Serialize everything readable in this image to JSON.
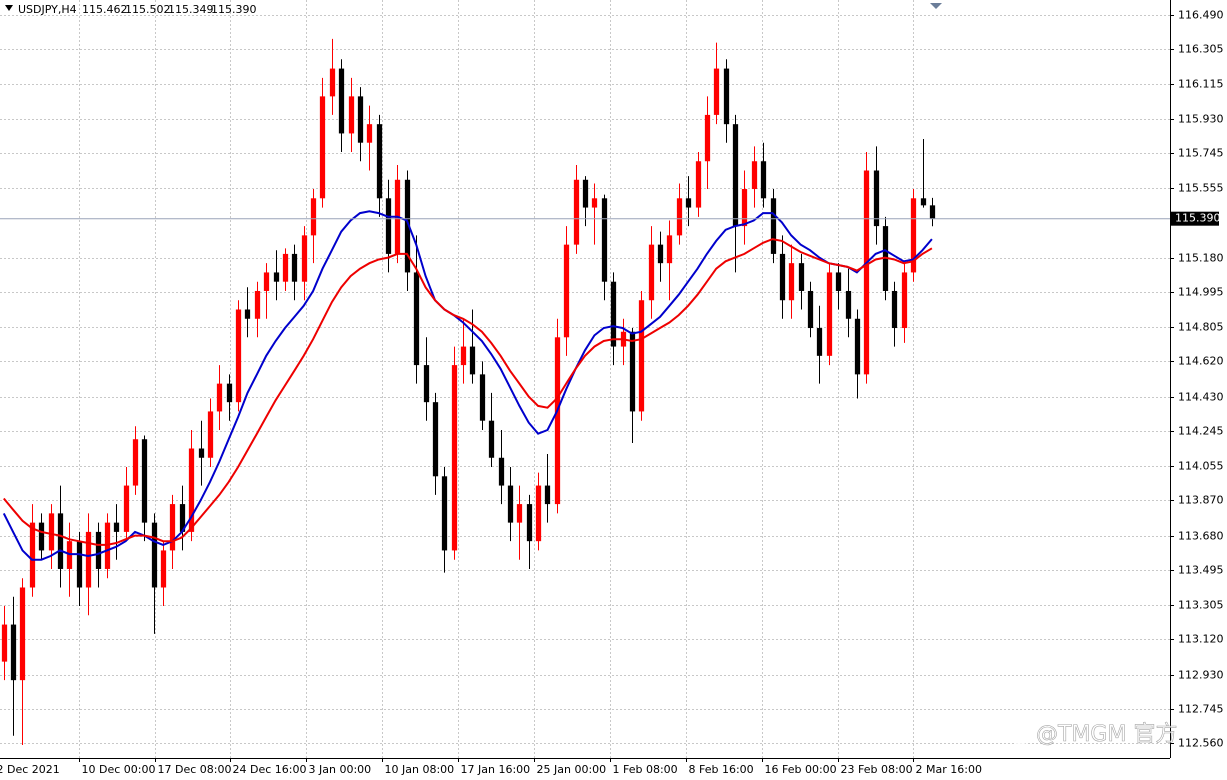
{
  "chart_data": {
    "type": "candlestick",
    "title": "USDJPY,H4",
    "last_bar_labels": [
      "115.462",
      "115.502",
      "115.349",
      "115.390"
    ],
    "current_price": {
      "value": 115.39,
      "label": "115.390"
    },
    "watermark": "@TMGM 官方",
    "bull_color": "#ff0000",
    "bear_color": "#000000",
    "grid": true,
    "open": [
      113.0,
      113.2,
      112.9,
      113.4,
      113.75,
      113.6,
      113.8,
      113.5,
      113.65,
      113.4,
      113.7,
      113.5,
      113.75,
      113.7,
      113.95,
      114.2,
      113.75,
      113.4,
      113.6,
      113.85,
      113.7,
      114.15,
      114.1,
      114.35,
      114.5,
      114.4,
      114.9,
      114.85,
      115.0,
      115.1,
      115.05,
      115.2,
      115.05,
      115.3,
      115.5,
      116.05,
      116.2,
      115.85,
      116.05,
      115.8,
      115.9,
      115.5,
      115.2,
      115.6,
      115.1,
      114.6,
      114.4,
      114.0,
      113.6,
      114.6,
      114.7,
      114.55,
      114.3,
      114.1,
      113.95,
      113.75,
      113.85,
      113.65,
      113.95,
      113.85,
      114.75,
      115.25,
      115.6,
      115.45,
      115.5,
      115.05,
      114.7,
      114.78,
      114.35,
      114.95,
      115.25,
      115.15,
      115.3,
      115.5,
      115.45,
      115.7,
      115.95,
      116.2,
      115.9,
      115.35,
      115.55,
      115.7,
      115.5,
      115.2,
      114.95,
      115.15,
      115.0,
      114.8,
      114.65,
      115.1,
      115.0,
      114.85,
      114.55,
      115.65,
      115.35,
      115.0,
      114.8,
      115.1,
      115.5,
      115.462
    ],
    "high": [
      113.3,
      113.35,
      113.45,
      113.85,
      113.8,
      113.85,
      113.95,
      113.75,
      113.7,
      113.8,
      113.75,
      113.8,
      113.85,
      114.05,
      114.27,
      114.22,
      113.8,
      113.65,
      113.9,
      113.95,
      114.25,
      114.3,
      114.42,
      114.6,
      114.55,
      114.95,
      115.02,
      115.05,
      115.15,
      115.22,
      115.23,
      115.25,
      115.35,
      115.55,
      116.15,
      116.36,
      116.25,
      116.15,
      116.1,
      116.0,
      115.95,
      115.6,
      115.68,
      115.65,
      115.3,
      114.75,
      114.45,
      114.05,
      114.7,
      114.85,
      114.9,
      114.62,
      114.45,
      114.25,
      114.05,
      113.95,
      113.9,
      114.02,
      114.12,
      114.85,
      115.35,
      115.68,
      115.62,
      115.58,
      115.52,
      115.1,
      114.85,
      114.8,
      115.0,
      115.35,
      115.32,
      115.38,
      115.58,
      115.62,
      115.75,
      116.05,
      116.34,
      116.25,
      115.95,
      115.65,
      115.78,
      115.8,
      115.55,
      115.3,
      115.25,
      115.2,
      115.05,
      114.92,
      115.15,
      115.15,
      115.12,
      114.9,
      115.75,
      115.78,
      115.4,
      115.05,
      115.15,
      115.55,
      115.82,
      115.502
    ],
    "low": [
      112.9,
      112.6,
      112.55,
      113.35,
      113.55,
      113.5,
      113.4,
      113.35,
      113.3,
      113.25,
      113.4,
      113.45,
      113.55,
      113.65,
      113.9,
      113.65,
      113.15,
      113.3,
      113.5,
      113.6,
      113.65,
      113.95,
      114.05,
      114.25,
      114.3,
      114.35,
      114.75,
      114.75,
      114.85,
      114.95,
      115.0,
      114.95,
      114.95,
      115.15,
      115.45,
      115.95,
      115.75,
      115.75,
      115.7,
      115.65,
      115.4,
      115.1,
      115.15,
      115.0,
      114.5,
      114.3,
      113.9,
      113.48,
      113.55,
      114.5,
      114.5,
      114.25,
      114.05,
      113.85,
      113.65,
      113.55,
      113.5,
      113.6,
      113.75,
      113.8,
      114.65,
      115.2,
      115.35,
      115.25,
      114.95,
      114.6,
      114.6,
      114.18,
      114.3,
      114.85,
      115.05,
      114.95,
      115.25,
      115.35,
      115.4,
      115.55,
      115.9,
      115.8,
      115.1,
      115.25,
      115.45,
      115.45,
      115.15,
      114.85,
      114.85,
      114.9,
      114.75,
      114.5,
      114.6,
      114.9,
      114.75,
      114.42,
      114.5,
      115.25,
      114.95,
      114.7,
      114.72,
      115.05,
      115.45,
      115.349
    ],
    "close": [
      113.2,
      112.9,
      113.4,
      113.75,
      113.6,
      113.8,
      113.5,
      113.65,
      113.4,
      113.7,
      113.5,
      113.75,
      113.7,
      113.95,
      114.2,
      113.75,
      113.4,
      113.6,
      113.85,
      113.7,
      114.15,
      114.1,
      114.35,
      114.5,
      114.4,
      114.9,
      114.85,
      115.0,
      115.1,
      115.05,
      115.2,
      115.05,
      115.3,
      115.5,
      116.05,
      116.2,
      115.85,
      116.05,
      115.8,
      115.9,
      115.5,
      115.2,
      115.6,
      115.1,
      114.6,
      114.4,
      114.0,
      113.6,
      114.6,
      114.7,
      114.55,
      114.3,
      114.1,
      113.95,
      113.75,
      113.85,
      113.65,
      113.95,
      113.85,
      114.75,
      115.25,
      115.6,
      115.45,
      115.5,
      115.05,
      114.7,
      114.78,
      114.35,
      114.95,
      115.25,
      115.15,
      115.3,
      115.5,
      115.45,
      115.7,
      115.95,
      116.2,
      115.9,
      115.35,
      115.55,
      115.7,
      115.5,
      115.2,
      114.95,
      115.15,
      115.0,
      114.8,
      114.65,
      115.1,
      115.0,
      114.85,
      114.55,
      115.65,
      115.35,
      115.0,
      114.8,
      115.1,
      115.5,
      115.462,
      115.39
    ],
    "lines": [
      {
        "color": "#0000cc",
        "values": [
          113.8,
          113.7,
          113.6,
          113.55,
          113.55,
          113.57,
          113.6,
          113.58,
          113.58,
          113.57,
          113.58,
          113.6,
          113.62,
          113.65,
          113.7,
          113.68,
          113.65,
          113.63,
          113.65,
          113.7,
          113.78,
          113.87,
          113.97,
          114.08,
          114.2,
          114.32,
          114.45,
          114.55,
          114.65,
          114.73,
          114.8,
          114.86,
          114.92,
          115.0,
          115.12,
          115.22,
          115.32,
          115.38,
          115.42,
          115.43,
          115.42,
          115.4,
          115.4,
          115.38,
          115.25,
          115.08,
          114.95,
          114.9,
          114.87,
          114.83,
          114.78,
          114.73,
          114.66,
          114.58,
          114.48,
          114.38,
          114.29,
          114.23,
          114.25,
          114.35,
          114.47,
          114.58,
          114.68,
          114.76,
          114.8,
          114.81,
          114.8,
          114.77,
          114.78,
          114.82,
          114.86,
          114.92,
          114.98,
          115.05,
          115.12,
          115.2,
          115.27,
          115.33,
          115.35,
          115.36,
          115.38,
          115.42,
          115.42,
          115.37,
          115.3,
          115.25,
          115.22,
          115.18,
          115.15,
          115.14,
          115.13,
          115.1,
          115.15,
          115.2,
          115.22,
          115.19,
          115.16,
          115.17,
          115.22,
          115.28
        ]
      },
      {
        "color": "#ee0000",
        "values": [
          113.88,
          113.82,
          113.76,
          113.72,
          113.7,
          113.69,
          113.68,
          113.66,
          113.65,
          113.64,
          113.63,
          113.63,
          113.64,
          113.66,
          113.68,
          113.68,
          113.67,
          113.65,
          113.65,
          113.67,
          113.72,
          113.78,
          113.84,
          113.9,
          113.97,
          114.05,
          114.14,
          114.23,
          114.32,
          114.41,
          114.49,
          114.57,
          114.65,
          114.74,
          114.84,
          114.94,
          115.02,
          115.08,
          115.12,
          115.15,
          115.17,
          115.18,
          115.2,
          115.2,
          115.12,
          115.02,
          114.95,
          114.9,
          114.87,
          114.85,
          114.82,
          114.78,
          114.72,
          114.65,
          114.57,
          114.5,
          114.43,
          114.38,
          114.37,
          114.42,
          114.5,
          114.58,
          114.65,
          114.7,
          114.73,
          114.74,
          114.74,
          114.73,
          114.74,
          114.77,
          114.8,
          114.83,
          114.87,
          114.92,
          114.98,
          115.05,
          115.12,
          115.16,
          115.18,
          115.2,
          115.23,
          115.26,
          115.28,
          115.27,
          115.24,
          115.21,
          115.19,
          115.17,
          115.15,
          115.14,
          115.13,
          115.11,
          115.14,
          115.17,
          115.18,
          115.17,
          115.15,
          115.16,
          115.2,
          115.23
        ]
      }
    ],
    "xlim": [
      -0.4,
      124.4
    ],
    "xticks": [
      {
        "value": -1.0,
        "label": "2 Dec 2021"
      },
      {
        "value": 8.0,
        "label": "10 Dec 00:00"
      },
      {
        "value": 16.1,
        "label": "17 Dec 08:00"
      },
      {
        "value": 24.1,
        "label": "24 Dec 16:00"
      },
      {
        "value": 32.2,
        "label": "3 Jan 00:00"
      },
      {
        "value": 40.3,
        "label": "10 Jan 08:00"
      },
      {
        "value": 48.5,
        "label": "17 Jan 16:00"
      },
      {
        "value": 56.6,
        "label": "25 Jan 00:00"
      },
      {
        "value": 64.7,
        "label": "1 Feb 08:00"
      },
      {
        "value": 72.8,
        "label": "8 Feb 16:00"
      },
      {
        "value": 80.9,
        "label": "16 Feb 00:00"
      },
      {
        "value": 89.0,
        "label": "23 Feb 08:00"
      },
      {
        "value": 97.0,
        "label": "2 Mar 16:00"
      }
    ],
    "ylim": [
      112.48,
      116.57
    ],
    "yticks": [
      {
        "value": 116.49,
        "label": "116.490"
      },
      116.305,
      116.115,
      {
        "value": 115.93,
        "label": "115.930"
      },
      115.745,
      115.555,
      {
        "value": 115.18,
        "label": "115.180"
      },
      114.995,
      114.805,
      {
        "value": 114.62,
        "label": "114.620"
      },
      {
        "value": 114.43,
        "label": "114.430"
      },
      114.245,
      114.055,
      {
        "value": 113.87,
        "label": "113.870"
      },
      {
        "value": 113.68,
        "label": "113.680"
      },
      113.495,
      113.305,
      {
        "value": 113.12,
        "label": "113.120"
      },
      {
        "value": 112.93,
        "label": "112.930"
      },
      112.745,
      {
        "value": 112.56,
        "label": "112.560"
      }
    ]
  }
}
